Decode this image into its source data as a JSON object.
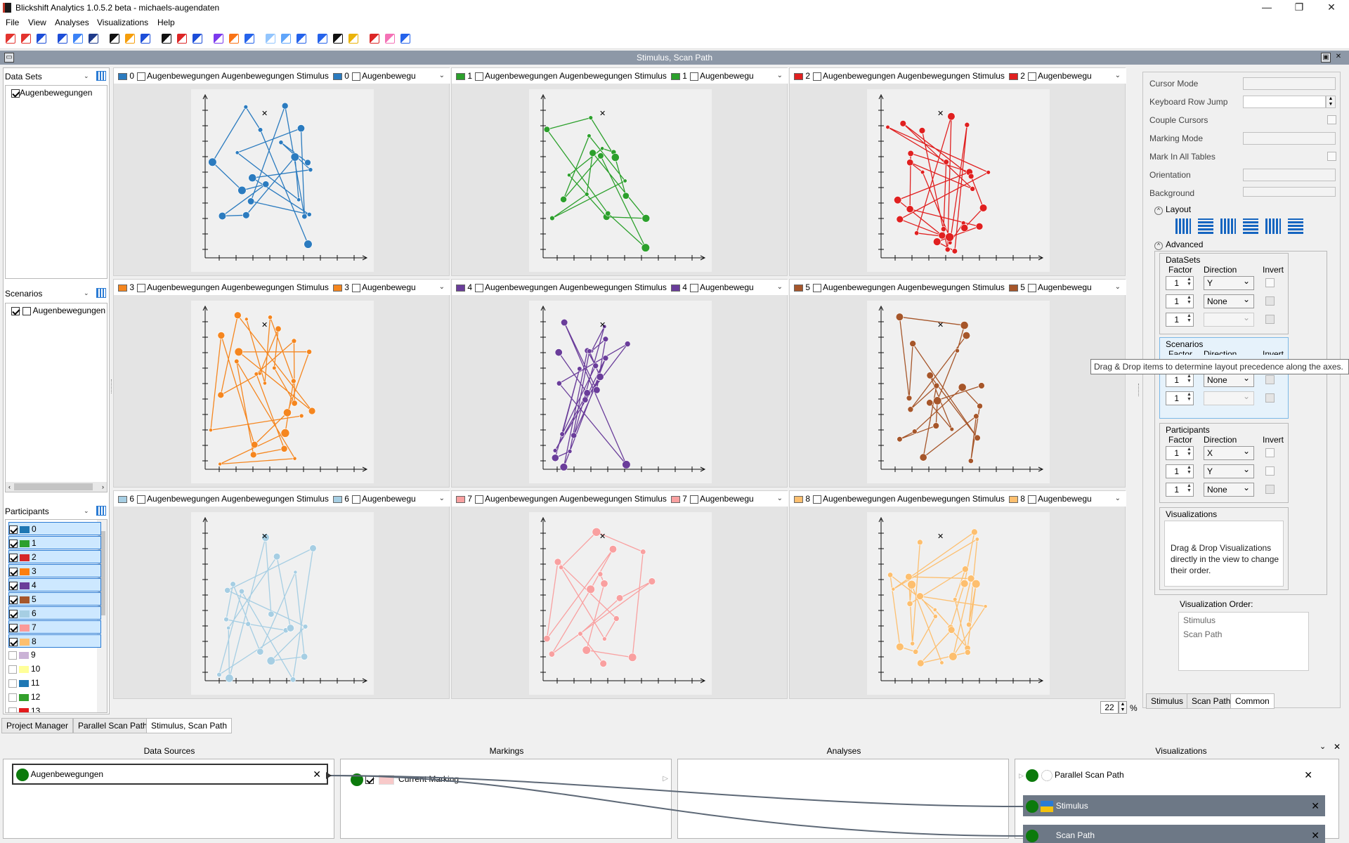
{
  "app": {
    "title": "Blickshift Analytics 1.0.5.2 beta - michaels-augendaten"
  },
  "window": {
    "min": "—",
    "max": "❐",
    "close": "✕"
  },
  "menu": [
    "File",
    "View",
    "Analyses",
    "Visualizations",
    "Help"
  ],
  "panel": {
    "title": "Stimulus, Scan Path"
  },
  "left": {
    "datasets_label": "Data Sets",
    "dataset_item": "Augenbewegungen",
    "scenarios_label": "Scenarios",
    "scenario_item": "Augenbewegungen",
    "participants_label": "Participants",
    "participants": [
      {
        "id": "0",
        "color": "#1f77b4",
        "checked": true
      },
      {
        "id": "1",
        "color": "#2ca02c",
        "checked": true
      },
      {
        "id": "2",
        "color": "#d62728",
        "checked": true
      },
      {
        "id": "3",
        "color": "#ff7f0e",
        "checked": true
      },
      {
        "id": "4",
        "color": "#6a3d9a",
        "checked": true
      },
      {
        "id": "5",
        "color": "#a6562a",
        "checked": true
      },
      {
        "id": "6",
        "color": "#a6cee3",
        "checked": true
      },
      {
        "id": "7",
        "color": "#fb9a99",
        "checked": true
      },
      {
        "id": "8",
        "color": "#fdbf6f",
        "checked": true
      },
      {
        "id": "9",
        "color": "#cab2d6",
        "checked": false
      },
      {
        "id": "10",
        "color": "#ffff99",
        "checked": false
      },
      {
        "id": "11",
        "color": "#1f78b4",
        "checked": false
      },
      {
        "id": "12",
        "color": "#33a02c",
        "checked": false
      },
      {
        "id": "13",
        "color": "#e31a1c",
        "checked": false
      }
    ]
  },
  "plots": [
    {
      "id": "0",
      "color": "#2b7bbf",
      "dataset": "Augenbewegungen",
      "scenario": "Augenbewegungen",
      "stimulus": "Stimulus",
      "extra": "Augenbewegu"
    },
    {
      "id": "1",
      "color": "#2ca02c",
      "dataset": "Augenbewegungen",
      "scenario": "Augenbewegungen",
      "stimulus": "Stimulus",
      "extra": "Augenbewegu"
    },
    {
      "id": "2",
      "color": "#e02020",
      "dataset": "Augenbewegungen",
      "scenario": "Augenbewegungen",
      "stimulus": "Stimulus",
      "extra": "Augenbewegu"
    },
    {
      "id": "3",
      "color": "#f5861f",
      "dataset": "Augenbewegungen",
      "scenario": "Augenbewegungen",
      "stimulus": "Stimulus",
      "extra": "Augenbewegu"
    },
    {
      "id": "4",
      "color": "#6a3d9a",
      "dataset": "Augenbewegungen",
      "scenario": "Augenbewegungen",
      "stimulus": "Stimulus",
      "extra": "Augenbewegu"
    },
    {
      "id": "5",
      "color": "#a6562a",
      "dataset": "Augenbewegungen",
      "scenario": "Augenbewegungen",
      "stimulus": "Stimulus",
      "extra": "Augenbewegu"
    },
    {
      "id": "6",
      "color": "#a6cee3",
      "dataset": "Augenbewegungen",
      "scenario": "Augenbewegungen",
      "stimulus": "Stimulus",
      "extra": "Augenbewegu"
    },
    {
      "id": "7",
      "color": "#f9a0a0",
      "dataset": "Augenbewegungen",
      "scenario": "Augenbewegungen",
      "stimulus": "Stimulus",
      "extra": "Augenbewegu"
    },
    {
      "id": "8",
      "color": "#fdbf6f",
      "dataset": "Augenbewegungen",
      "scenario": "Augenbewegungen",
      "stimulus": "Stimulus",
      "extra": "Augenbewegu"
    }
  ],
  "right": {
    "cursor_mode": "Cursor Mode",
    "keyboard_row_jump": "Keyboard Row Jump",
    "couple_cursors": "Couple Cursors",
    "marking_mode": "Marking Mode",
    "mark_in_all_tables": "Mark In All Tables",
    "orientation": "Orientation",
    "background": "Background",
    "layout": "Layout",
    "advanced": "Advanced",
    "datasets": "DataSets",
    "scenarios": "Scenarios",
    "participants": "Participants",
    "factor": "Factor",
    "direction": "Direction",
    "invert": "Invert",
    "ds_rows": [
      {
        "f": "1",
        "d": "Y"
      },
      {
        "f": "1",
        "d": "None"
      },
      {
        "f": "1",
        "d": ""
      }
    ],
    "sc_rows": [
      {
        "f": "1",
        "d": "None"
      },
      {
        "f": "1",
        "d": ""
      }
    ],
    "pa_rows": [
      {
        "f": "1",
        "d": "X"
      },
      {
        "f": "1",
        "d": "Y"
      },
      {
        "f": "1",
        "d": "None"
      }
    ],
    "visualizations": "Visualizations",
    "viz_hint": "Drag & Drop Visualizations directly in the view to change their order.",
    "viz_order_label": "Visualization Order:",
    "viz_order": [
      "Stimulus",
      "Scan Path"
    ],
    "tabs": [
      "Stimulus",
      "Scan Path",
      "Common"
    ]
  },
  "tooltip": "Drag & Drop items to determine layout precedence along the axes.",
  "zoom": "22",
  "zoom_unit": "%",
  "doc_tabs": [
    "Project Manager",
    "Parallel Scan Path",
    "Stimulus, Scan Path"
  ],
  "bottom": {
    "data_sources": "Data Sources",
    "markings": "Markings",
    "analyses": "Analyses",
    "visualizations": "Visualizations",
    "source_item": "Augenbewegungen",
    "marking_item": "Current Marking",
    "viz_items": [
      "Parallel Scan Path",
      "Stimulus",
      "Scan Path"
    ]
  }
}
